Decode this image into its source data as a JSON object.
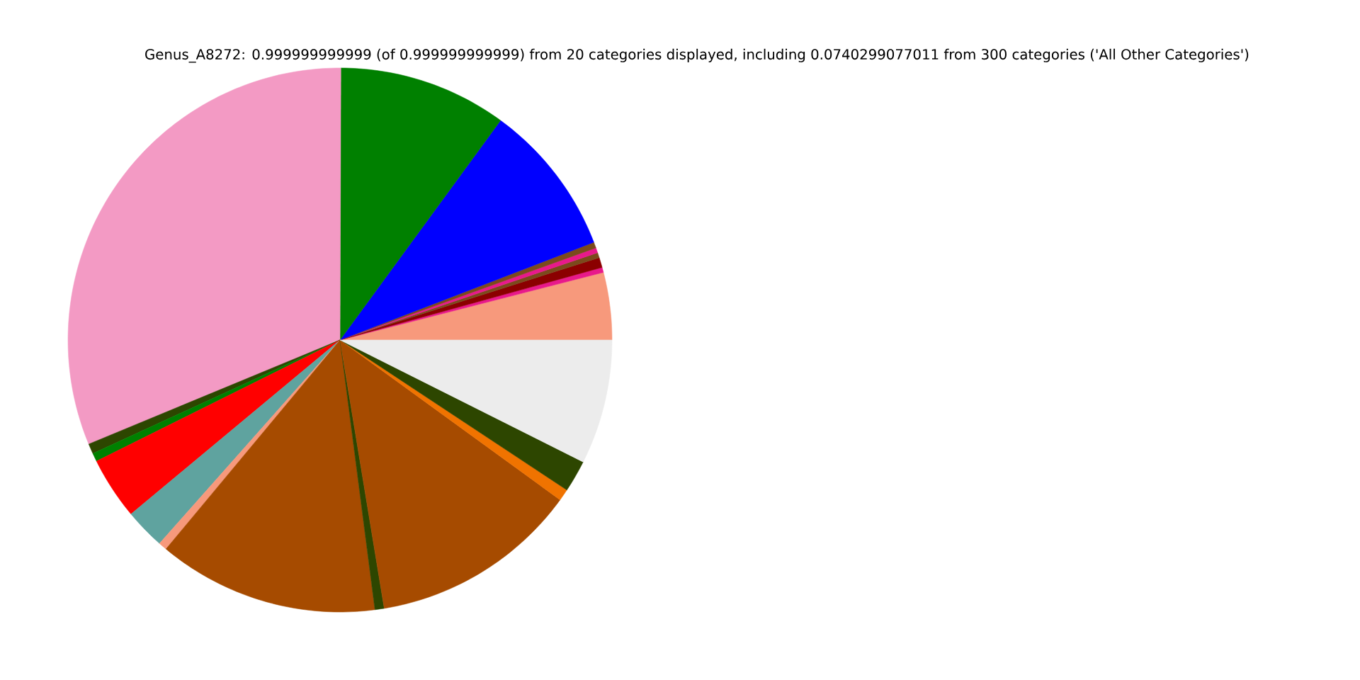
{
  "chart_data": {
    "type": "pie",
    "title": "Genus_A8272: 0.999999999999 (of 0.999999999999) from 20 categories displayed, including 0.0740299077011 from 300 categories ('All Other Categories')",
    "categories": [
      null,
      null,
      null,
      null,
      null,
      null,
      null,
      null,
      null,
      null,
      null,
      null,
      null,
      null,
      null,
      null,
      null,
      null,
      null,
      null
    ],
    "values": [
      4.0,
      0.3,
      0.6,
      0.3,
      0.3,
      0.35,
      9.1,
      10.0,
      31.3,
      0.6,
      0.5,
      3.7,
      2.4,
      0.5,
      13.1,
      0.55,
      12.4,
      0.7,
      1.9,
      7.4
    ],
    "colors": [
      "#f7997c",
      "#e8198b",
      "#8b0000",
      "#7b4a1c",
      "#e8198b",
      "#7b4a1c",
      "#0000ff",
      "#008000",
      "#f39ac4",
      "#2d4600",
      "#008000",
      "#ff0000",
      "#5fa39f",
      "#f7997c",
      "#a64b00",
      "#2d4600",
      "#a64b00",
      "#f07300",
      "#2d4600",
      "#ececec"
    ]
  }
}
